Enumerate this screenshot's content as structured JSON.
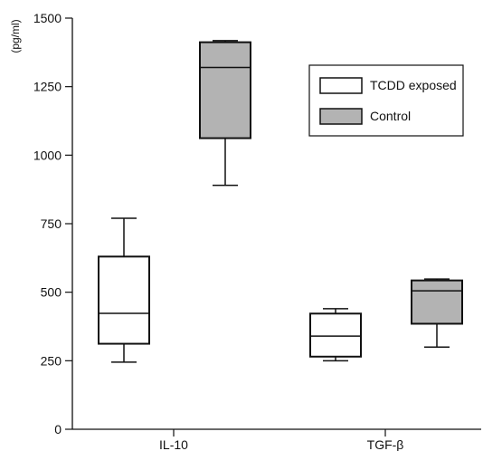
{
  "chart_data": {
    "type": "box",
    "title": "",
    "xlabel": "",
    "ylabel": "(pg/ml)",
    "ylim": [
      0,
      1500
    ],
    "yticks": [
      "0",
      "250",
      "500",
      "750",
      "1000",
      "1250",
      "1500"
    ],
    "categories": [
      "IL-10",
      "TGF-β"
    ],
    "legend": {
      "position": "top-right"
    },
    "grid": false,
    "series": [
      {
        "name": "TCDD exposed",
        "color": "#ffffff",
        "boxes": [
          {
            "category": "IL-10",
            "min": 245,
            "q1": 312,
            "median": 423,
            "q3": 630,
            "max": 770
          },
          {
            "category": "TGF-β",
            "min": 250,
            "q1": 265,
            "median": 340,
            "q3": 422,
            "max": 440
          }
        ]
      },
      {
        "name": "Control",
        "color": "#b3b3b3",
        "boxes": [
          {
            "category": "IL-10",
            "min": 890,
            "q1": 1062,
            "median": 1320,
            "q3": 1412,
            "max": 1418
          },
          {
            "category": "TGF-β",
            "min": 300,
            "q1": 385,
            "median": 505,
            "q3": 543,
            "max": 548
          }
        ]
      }
    ]
  }
}
